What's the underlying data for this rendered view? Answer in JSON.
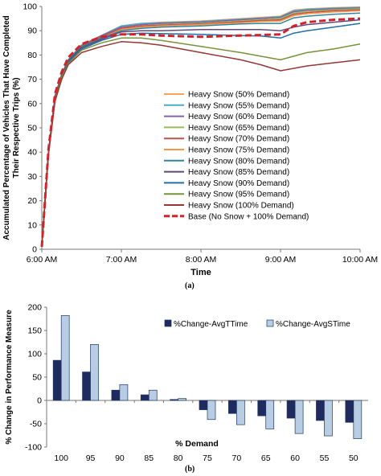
{
  "chart_data": [
    {
      "type": "line",
      "panel_label": "(a)",
      "xlabel": "Time",
      "ylabel": "Accumulated Percentage of Vehicles That Have Completed Their Respective Trips (%)",
      "ylabel_lines": [
        "Accumulated Percentage of Vehicles That Have Completed",
        "Their Respective Trips (%)"
      ],
      "x_ticks": [
        "6:00 AM",
        "7:00 AM",
        "8:00 AM",
        "9:00 AM",
        "10:00 AM"
      ],
      "y_ticks": [
        0,
        10,
        20,
        30,
        40,
        50,
        60,
        70,
        80,
        90,
        100
      ],
      "ylim": [
        0,
        100
      ],
      "x_unit": "minutes after 6:00 AM",
      "xlim": [
        0,
        240
      ],
      "x": [
        0,
        5,
        10,
        15,
        20,
        30,
        45,
        60,
        75,
        90,
        120,
        150,
        165,
        180,
        190,
        200,
        220,
        240
      ],
      "grid": false,
      "legend_position": "center-right",
      "series": [
        {
          "name": "Heavy Snow (50% Demand)",
          "color": "#f7a35c",
          "values": [
            1,
            40,
            63,
            72,
            78,
            84,
            88,
            92,
            93,
            93.5,
            94,
            95,
            95.5,
            96,
            98.5,
            99,
            99.5,
            99.8
          ]
        },
        {
          "name": "Heavy Snow (55% Demand)",
          "color": "#4bacc6",
          "values": [
            1,
            40,
            63,
            72,
            78,
            84,
            88,
            92,
            93,
            93.3,
            93.8,
            94.8,
            95.2,
            95.8,
            98.2,
            98.8,
            99.3,
            99.6
          ]
        },
        {
          "name": "Heavy Snow (60% Demand)",
          "color": "#8064a2",
          "values": [
            1,
            40,
            63,
            72,
            78,
            84,
            88,
            91.5,
            92.5,
            93,
            93.5,
            94.5,
            95,
            95.5,
            97.8,
            98.4,
            99,
            99.3
          ]
        },
        {
          "name": "Heavy Snow (65% Demand)",
          "color": "#9bbb59",
          "values": [
            1,
            40,
            63,
            72,
            78,
            84,
            87.5,
            91,
            92,
            92.5,
            93,
            94,
            94.5,
            95,
            97.3,
            98,
            98.6,
            99
          ]
        },
        {
          "name": "Heavy Snow (70% Demand)",
          "color": "#c0504d",
          "values": [
            1,
            40,
            63,
            72,
            78,
            84,
            87.5,
            91,
            92,
            92.3,
            92.8,
            93.7,
            94.2,
            94.5,
            96.8,
            97.5,
            98.2,
            98.6
          ]
        },
        {
          "name": "Heavy Snow (75% Demand)",
          "color": "#f79646",
          "values": [
            1,
            40,
            63,
            72,
            78,
            83.5,
            87,
            90.5,
            91.5,
            92,
            92.5,
            93.3,
            93.8,
            94,
            96.2,
            97,
            97.7,
            98.2
          ]
        },
        {
          "name": "Heavy Snow (80% Demand)",
          "color": "#31859c",
          "values": [
            1,
            40,
            63,
            72,
            78,
            83.5,
            87,
            90,
            91,
            91.5,
            92,
            92.8,
            93,
            93,
            95.3,
            96,
            96.8,
            97.3
          ]
        },
        {
          "name": "Heavy Snow (85% Demand)",
          "color": "#5f497a",
          "values": [
            1,
            40,
            63,
            71.5,
            77.5,
            83,
            86.5,
            89.5,
            90,
            90,
            90.5,
            90.5,
            90.5,
            90,
            91.5,
            92.5,
            93.5,
            94.5
          ]
        },
        {
          "name": "Heavy Snow (90% Demand)",
          "color": "#1f6fa8",
          "values": [
            1,
            40,
            62,
            71,
            77,
            82.5,
            86,
            88.5,
            89,
            88.8,
            88.5,
            88,
            87.8,
            87,
            89,
            90,
            91.5,
            93
          ]
        },
        {
          "name": "Heavy Snow (95% Demand)",
          "color": "#77933c",
          "values": [
            1,
            39,
            62,
            71,
            76.5,
            82,
            85,
            87,
            87,
            86,
            83.5,
            81,
            79.5,
            78,
            79.5,
            81,
            82.5,
            84.5
          ]
        },
        {
          "name": "Heavy Snow (100% Demand)",
          "color": "#953735",
          "values": [
            1,
            39,
            61,
            70,
            76,
            81,
            83.5,
            85.5,
            85,
            84,
            81,
            78,
            76,
            73.5,
            74.5,
            75.5,
            76.8,
            78
          ]
        },
        {
          "name": "Base (No Snow + 100% Demand)",
          "color": "#d2232a",
          "dashed": true,
          "values": [
            1,
            41,
            64,
            73,
            79,
            84.5,
            87.5,
            88.5,
            88.5,
            88,
            87.5,
            88,
            88.2,
            88.5,
            92,
            93.5,
            94.5,
            95
          ]
        }
      ]
    },
    {
      "type": "bar",
      "panel_label": "(b)",
      "xlabel": "% Demand",
      "ylabel": "% Change in Performance Measure",
      "categories": [
        "100",
        "95",
        "90",
        "85",
        "80",
        "75",
        "70",
        "65",
        "60",
        "55",
        "50"
      ],
      "y_ticks": [
        -100,
        -50,
        0,
        50,
        100,
        150,
        200
      ],
      "ylim": [
        -100,
        200
      ],
      "grid": false,
      "legend_position": "right",
      "series": [
        {
          "name": "%Change-AvgTTime",
          "color": "#1f2a5e",
          "values": [
            86,
            61,
            22,
            12,
            2,
            -20,
            -28,
            -33,
            -38,
            -43,
            -47
          ]
        },
        {
          "name": "%Change-AvgSTime",
          "color": "#b8cce4",
          "values": [
            182,
            120,
            34,
            22,
            4,
            -41,
            -52,
            -61,
            -71,
            -76,
            -82
          ]
        }
      ]
    }
  ]
}
